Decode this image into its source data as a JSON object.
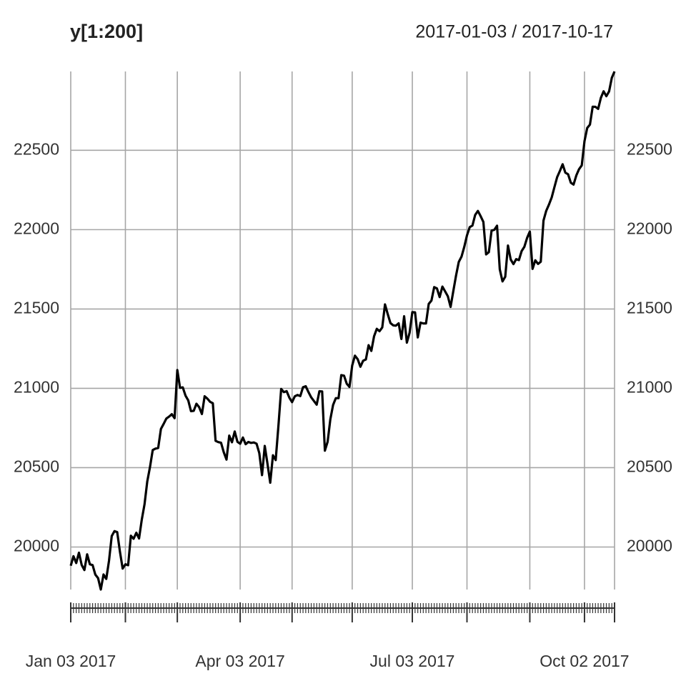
{
  "chart_data": {
    "type": "line",
    "title": "y[1:200]",
    "subtitle": "2017-01-03 / 2017-10-17",
    "x": [
      "2017-01-03",
      "2017-01-04",
      "2017-01-05",
      "2017-01-06",
      "2017-01-09",
      "2017-01-10",
      "2017-01-11",
      "2017-01-12",
      "2017-01-13",
      "2017-01-17",
      "2017-01-18",
      "2017-01-19",
      "2017-01-20",
      "2017-01-23",
      "2017-01-24",
      "2017-01-25",
      "2017-01-26",
      "2017-01-27",
      "2017-01-30",
      "2017-01-31",
      "2017-02-01",
      "2017-02-02",
      "2017-02-03",
      "2017-02-06",
      "2017-02-07",
      "2017-02-08",
      "2017-02-09",
      "2017-02-10",
      "2017-02-13",
      "2017-02-14",
      "2017-02-15",
      "2017-02-16",
      "2017-02-17",
      "2017-02-21",
      "2017-02-22",
      "2017-02-23",
      "2017-02-24",
      "2017-02-27",
      "2017-02-28",
      "2017-03-01",
      "2017-03-02",
      "2017-03-03",
      "2017-03-06",
      "2017-03-07",
      "2017-03-08",
      "2017-03-09",
      "2017-03-10",
      "2017-03-13",
      "2017-03-14",
      "2017-03-15",
      "2017-03-16",
      "2017-03-17",
      "2017-03-20",
      "2017-03-21",
      "2017-03-22",
      "2017-03-23",
      "2017-03-24",
      "2017-03-27",
      "2017-03-28",
      "2017-03-29",
      "2017-03-30",
      "2017-03-31",
      "2017-04-03",
      "2017-04-04",
      "2017-04-05",
      "2017-04-06",
      "2017-04-07",
      "2017-04-10",
      "2017-04-11",
      "2017-04-12",
      "2017-04-13",
      "2017-04-17",
      "2017-04-18",
      "2017-04-19",
      "2017-04-20",
      "2017-04-21",
      "2017-04-24",
      "2017-04-25",
      "2017-04-26",
      "2017-04-27",
      "2017-04-28",
      "2017-05-01",
      "2017-05-02",
      "2017-05-03",
      "2017-05-04",
      "2017-05-05",
      "2017-05-08",
      "2017-05-09",
      "2017-05-10",
      "2017-05-11",
      "2017-05-12",
      "2017-05-15",
      "2017-05-16",
      "2017-05-17",
      "2017-05-18",
      "2017-05-19",
      "2017-05-22",
      "2017-05-23",
      "2017-05-24",
      "2017-05-25",
      "2017-05-26",
      "2017-05-30",
      "2017-05-31",
      "2017-06-01",
      "2017-06-02",
      "2017-06-05",
      "2017-06-06",
      "2017-06-07",
      "2017-06-08",
      "2017-06-09",
      "2017-06-12",
      "2017-06-13",
      "2017-06-14",
      "2017-06-15",
      "2017-06-16",
      "2017-06-19",
      "2017-06-20",
      "2017-06-21",
      "2017-06-22",
      "2017-06-23",
      "2017-06-26",
      "2017-06-27",
      "2017-06-28",
      "2017-06-29",
      "2017-06-30",
      "2017-07-03",
      "2017-07-05",
      "2017-07-06",
      "2017-07-07",
      "2017-07-10",
      "2017-07-11",
      "2017-07-12",
      "2017-07-13",
      "2017-07-14",
      "2017-07-17",
      "2017-07-18",
      "2017-07-19",
      "2017-07-20",
      "2017-07-21",
      "2017-07-24",
      "2017-07-25",
      "2017-07-26",
      "2017-07-27",
      "2017-07-28",
      "2017-07-31",
      "2017-08-01",
      "2017-08-02",
      "2017-08-03",
      "2017-08-04",
      "2017-08-07",
      "2017-08-08",
      "2017-08-09",
      "2017-08-10",
      "2017-08-11",
      "2017-08-14",
      "2017-08-15",
      "2017-08-16",
      "2017-08-17",
      "2017-08-18",
      "2017-08-21",
      "2017-08-22",
      "2017-08-23",
      "2017-08-24",
      "2017-08-25",
      "2017-08-28",
      "2017-08-29",
      "2017-08-30",
      "2017-08-31",
      "2017-09-01",
      "2017-09-05",
      "2017-09-06",
      "2017-09-07",
      "2017-09-08",
      "2017-09-11",
      "2017-09-12",
      "2017-09-13",
      "2017-09-14",
      "2017-09-15",
      "2017-09-18",
      "2017-09-19",
      "2017-09-20",
      "2017-09-21",
      "2017-09-22",
      "2017-09-25",
      "2017-09-26",
      "2017-09-27",
      "2017-09-28",
      "2017-09-29",
      "2017-10-02",
      "2017-10-03",
      "2017-10-04",
      "2017-10-05",
      "2017-10-06",
      "2017-10-09",
      "2017-10-10",
      "2017-10-11",
      "2017-10-12",
      "2017-10-13",
      "2017-10-16",
      "2017-10-17"
    ],
    "values": [
      19882,
      19942,
      19899,
      19964,
      19887,
      19855,
      19954,
      19891,
      19886,
      19826,
      19804,
      19732,
      19827,
      19799,
      19913,
      20069,
      20100,
      20094,
      19971,
      19864,
      19891,
      19885,
      20071,
      20052,
      20090,
      20054,
      20173,
      20269,
      20413,
      20504,
      20611,
      20620,
      20624,
      20744,
      20776,
      20810,
      20822,
      20837,
      20812,
      21115,
      21003,
      21006,
      20954,
      20924,
      20856,
      20858,
      20903,
      20881,
      20838,
      20950,
      20935,
      20915,
      20906,
      20669,
      20661,
      20657,
      20597,
      20551,
      20702,
      20660,
      20728,
      20663,
      20651,
      20690,
      20648,
      20662,
      20656,
      20659,
      20651,
      20592,
      20453,
      20637,
      20524,
      20405,
      20578,
      20548,
      20763,
      20996,
      20976,
      20982,
      20941,
      20913,
      20950,
      20958,
      20951,
      21007,
      21013,
      20976,
      20943,
      20920,
      20897,
      20982,
      20980,
      20607,
      20663,
      20805,
      20895,
      20938,
      20938,
      21083,
      21080,
      21029,
      21009,
      21144,
      21206,
      21184,
      21136,
      21174,
      21182,
      21272,
      21236,
      21328,
      21375,
      21360,
      21384,
      21529,
      21468,
      21411,
      21397,
      21395,
      21410,
      21311,
      21454,
      21288,
      21350,
      21480,
      21479,
      21321,
      21414,
      21409,
      21409,
      21532,
      21553,
      21638,
      21630,
      21575,
      21641,
      21611,
      21580,
      21513,
      21613,
      21711,
      21797,
      21830,
      21891,
      21964,
      22016,
      22026,
      22093,
      22118,
      22085,
      22049,
      21844,
      21858,
      21994,
      21999,
      22025,
      21750,
      21674,
      21703,
      21900,
      21812,
      21783,
      21814,
      21808,
      21865,
      21892,
      21948,
      21988,
      21753,
      21807,
      21784,
      21798,
      22057,
      22119,
      22158,
      22203,
      22268,
      22331,
      22370,
      22412,
      22359,
      22349,
      22296,
      22284,
      22341,
      22381,
      22405,
      22557,
      22641,
      22662,
      22775,
      22774,
      22761,
      22831,
      22872,
      22841,
      22871,
      22957,
      22997
    ],
    "color": "#000000",
    "ylim": [
      19732,
      22997
    ],
    "yticks": [
      20000,
      20500,
      21000,
      21500,
      22000,
      22500
    ],
    "xticks": [
      {
        "value": "2017-01-03",
        "label": "Jan 03 2017"
      },
      {
        "value": "2017-04-03",
        "label": "Apr 03 2017"
      },
      {
        "value": "2017-07-03",
        "label": "Jul 03 2017"
      },
      {
        "value": "2017-10-02",
        "label": "Oct 02 2017"
      }
    ],
    "grid": true
  }
}
